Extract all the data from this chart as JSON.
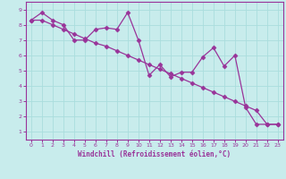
{
  "xlabel": "Windchill (Refroidissement éolien,°C)",
  "background_color": "#c8ecec",
  "line_color": "#993399",
  "grid_color": "#aadddd",
  "xlim": [
    -0.5,
    23.5
  ],
  "ylim": [
    0.5,
    9.5
  ],
  "xticks": [
    0,
    1,
    2,
    3,
    4,
    5,
    6,
    7,
    8,
    9,
    10,
    11,
    12,
    13,
    14,
    15,
    16,
    17,
    18,
    19,
    20,
    21,
    22,
    23
  ],
  "yticks": [
    1,
    2,
    3,
    4,
    5,
    6,
    7,
    8,
    9
  ],
  "series1_x": [
    0,
    1,
    2,
    3,
    4,
    5,
    6,
    7,
    8,
    9,
    10,
    11,
    12,
    13,
    14,
    15,
    16,
    17,
    18,
    19,
    20,
    21,
    22,
    23
  ],
  "series1_y": [
    8.3,
    8.8,
    8.3,
    8.0,
    7.0,
    7.0,
    7.7,
    7.8,
    7.7,
    8.8,
    7.0,
    4.7,
    5.4,
    4.6,
    4.9,
    4.9,
    5.9,
    6.5,
    5.3,
    6.0,
    2.6,
    1.5,
    1.5,
    1.5
  ],
  "series2_x": [
    0,
    1,
    2,
    3,
    4,
    5,
    6,
    7,
    8,
    9,
    10,
    11,
    12,
    13,
    14,
    15,
    16,
    17,
    18,
    19,
    20,
    21,
    22,
    23
  ],
  "series2_y": [
    8.3,
    8.3,
    8.0,
    7.7,
    7.4,
    7.1,
    6.8,
    6.6,
    6.3,
    6.0,
    5.7,
    5.4,
    5.1,
    4.8,
    4.5,
    4.2,
    3.9,
    3.6,
    3.3,
    3.0,
    2.7,
    2.4,
    1.5,
    1.5
  ],
  "marker": "D",
  "markersize": 2.5,
  "linewidth": 0.9
}
